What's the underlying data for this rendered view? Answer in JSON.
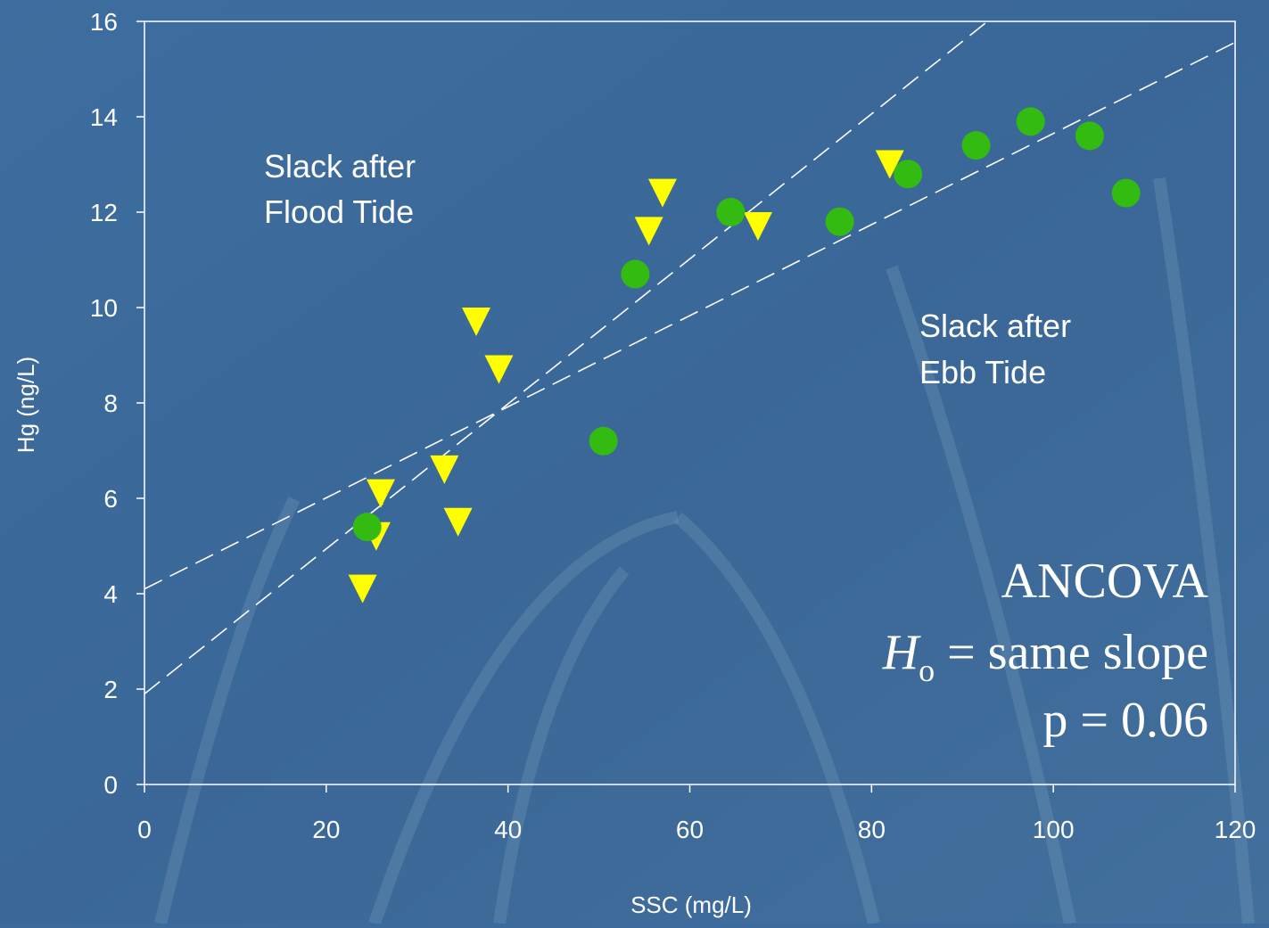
{
  "colors": {
    "background": "#3b6a9c",
    "flood_marker": "#ffff00",
    "ebb_marker": "#33bb11",
    "axis": "#ffffff",
    "fit_line": "#ffffff"
  },
  "chart_data": {
    "type": "scatter",
    "title": "",
    "xlabel": "SSC (mg/L)",
    "ylabel": "Hg (ng/L)",
    "xlim": [
      0,
      120
    ],
    "ylim": [
      0,
      16
    ],
    "xticks": [
      0,
      20,
      40,
      60,
      80,
      100,
      120
    ],
    "yticks": [
      0,
      2,
      4,
      6,
      8,
      10,
      12,
      14,
      16
    ],
    "grid": false,
    "series": [
      {
        "marker": "triangle-down",
        "color": "#ffff00",
        "points": [
          [
            24,
            4.1
          ],
          [
            25.5,
            5.2
          ],
          [
            26,
            6.1
          ],
          [
            33,
            6.6
          ],
          [
            34.5,
            5.5
          ],
          [
            36.5,
            9.7
          ],
          [
            39,
            8.7
          ],
          [
            55.5,
            11.6
          ],
          [
            57,
            12.4
          ],
          [
            67.5,
            11.7
          ],
          [
            82,
            13.0
          ]
        ]
      },
      {
        "marker": "circle",
        "color": "#33bb11",
        "points": [
          [
            24.5,
            5.4
          ],
          [
            50.5,
            7.2
          ],
          [
            54,
            10.7
          ],
          [
            64.5,
            12.0
          ],
          [
            76.5,
            11.8
          ],
          [
            84,
            12.8
          ],
          [
            91.5,
            13.4
          ],
          [
            97.5,
            13.9
          ],
          [
            104,
            13.6
          ],
          [
            108,
            12.4
          ]
        ]
      }
    ],
    "fit_lines": [
      {
        "label": "Flood",
        "intercept": 1.9,
        "slope": 0.152,
        "style": "dashed"
      },
      {
        "label": "Ebb",
        "intercept": 4.1,
        "slope": 0.0955,
        "style": "dashed"
      }
    ],
    "annotations": {
      "flood_line1": "Slack after",
      "flood_line2": "Flood Tide",
      "ebb_line1": "Slack after",
      "ebb_line2": "Ebb Tide",
      "ancova_title": "ANCOVA",
      "ancova_h": "H",
      "ancova_sub": "o",
      "ancova_eq": " = same slope",
      "ancova_p": "p = 0.06"
    }
  }
}
